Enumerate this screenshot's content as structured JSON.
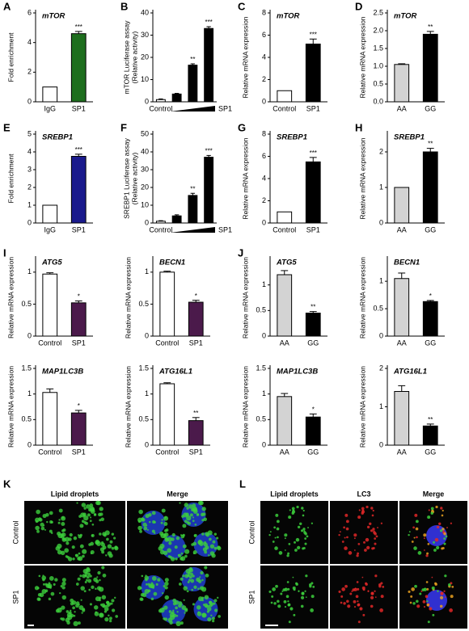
{
  "chart_data": [
    {
      "type": "bar",
      "letter": "A",
      "title": "mTOR",
      "ylabel": [
        "Fold enrichment"
      ],
      "categories": [
        "IgG",
        "SP1"
      ],
      "values": [
        1,
        4.6
      ],
      "errors": [
        null,
        0.15
      ],
      "colors": [
        "#ffffff",
        "#1e6e1e"
      ],
      "markers": [
        null,
        "***"
      ],
      "ylim": [
        0,
        6
      ],
      "yticks": [
        0,
        2,
        4,
        6
      ]
    },
    {
      "type": "bar",
      "letter": "B",
      "ylabel": [
        "mTOR Luciferase assay",
        "(Relative activity)"
      ],
      "categories": [
        "Control",
        null,
        null,
        null
      ],
      "gradient_label": "SP1",
      "values": [
        1,
        3.5,
        16.5,
        33
      ],
      "errors": [
        0.3,
        0.3,
        0.6,
        0.8
      ],
      "colors": [
        "#ffffff",
        "#000000",
        "#000000",
        "#000000"
      ],
      "markers": [
        null,
        null,
        "**",
        "***"
      ],
      "ylim": [
        0,
        40
      ],
      "yticks": [
        0,
        10,
        20,
        30,
        40
      ]
    },
    {
      "type": "bar",
      "letter": "C",
      "title": "mTOR",
      "ylabel": [
        "Relative mRNA expression"
      ],
      "categories": [
        "Control",
        "SP1"
      ],
      "values": [
        1,
        5.2
      ],
      "errors": [
        null,
        0.45
      ],
      "colors": [
        "#ffffff",
        "#000000"
      ],
      "markers": [
        null,
        "***"
      ],
      "ylim": [
        0,
        8
      ],
      "yticks": [
        0,
        2,
        4,
        6,
        8
      ]
    },
    {
      "type": "bar",
      "letter": "D",
      "title": "mTOR",
      "ylabel": [
        "Relative mRNA expression"
      ],
      "categories": [
        "AA",
        "GG"
      ],
      "values": [
        1.05,
        1.9
      ],
      "errors": [
        0.02,
        0.08
      ],
      "colors": [
        "#d3d3d3",
        "#000000"
      ],
      "markers": [
        null,
        "**"
      ],
      "ylim": [
        0,
        2.5
      ],
      "yticks": [
        {
          "value": 0,
          "label": "0.0"
        },
        0.5,
        {
          "value": 1,
          "label": "1.0"
        },
        1.5,
        {
          "value": 2,
          "label": "2.0"
        },
        2.5
      ]
    },
    {
      "type": "bar",
      "letter": "E",
      "title": "SREBP1",
      "ylabel": [
        "Fold enrichment"
      ],
      "categories": [
        "IgG",
        "SP1"
      ],
      "values": [
        1,
        3.75
      ],
      "errors": [
        null,
        0.12
      ],
      "colors": [
        "#ffffff",
        "#1a1a8c"
      ],
      "markers": [
        null,
        "***"
      ],
      "ylim": [
        0,
        5
      ],
      "yticks": [
        0,
        1,
        2,
        3,
        4,
        5
      ]
    },
    {
      "type": "bar",
      "letter": "F",
      "ylabel": [
        "SREBP1 Luciferase assay",
        "(Relative activity)"
      ],
      "categories": [
        "Control",
        null,
        null,
        null
      ],
      "gradient_label": "SP1",
      "values": [
        1,
        4,
        15.5,
        37
      ],
      "errors": [
        0.3,
        0.6,
        1.2,
        1
      ],
      "colors": [
        "#ffffff",
        "#000000",
        "#000000",
        "#000000"
      ],
      "markers": [
        null,
        null,
        "**",
        "***"
      ],
      "ylim": [
        0,
        50
      ],
      "yticks": [
        0,
        10,
        20,
        30,
        40,
        50
      ]
    },
    {
      "type": "bar",
      "letter": "G",
      "title": "SREBP1",
      "ylabel": [
        "Relative mRNA expression"
      ],
      "categories": [
        "Control",
        "SP1"
      ],
      "values": [
        1,
        5.5
      ],
      "errors": [
        null,
        0.4
      ],
      "colors": [
        "#ffffff",
        "#000000"
      ],
      "markers": [
        null,
        "***"
      ],
      "ylim": [
        0,
        8
      ],
      "yticks": [
        0,
        2,
        4,
        6,
        8
      ]
    },
    {
      "type": "bar",
      "letter": "H",
      "title": "SREBP1",
      "ylabel": [
        "Relative mRNA expression"
      ],
      "categories": [
        "AA",
        "GG"
      ],
      "values": [
        1,
        2
      ],
      "errors": [
        null,
        0.1
      ],
      "colors": [
        "#d3d3d3",
        "#000000"
      ],
      "markers": [
        null,
        "**"
      ],
      "ylim": [
        0,
        2.5
      ],
      "yticks": [
        0,
        1,
        2
      ]
    },
    {
      "type": "bar",
      "letter": "I",
      "title": "ATG5",
      "ylabel": [
        "Relative mRNA expression"
      ],
      "categories": [
        "Control",
        "SP1"
      ],
      "values": [
        0.97,
        0.52
      ],
      "errors": [
        0.02,
        0.03
      ],
      "colors": [
        "#ffffff",
        "#4b1a4b"
      ],
      "markers": [
        null,
        "*"
      ],
      "ylim": [
        0,
        1.2
      ],
      "yticks": [
        0,
        0.5,
        1
      ]
    },
    {
      "type": "bar",
      "title": "BECN1",
      "ylabel": [
        "Relative mRNA expression"
      ],
      "categories": [
        "Control",
        "SP1"
      ],
      "values": [
        1,
        0.53
      ],
      "errors": [
        0.015,
        0.03
      ],
      "colors": [
        "#ffffff",
        "#4b1a4b"
      ],
      "markers": [
        null,
        "*"
      ],
      "ylim": [
        0,
        1.2
      ],
      "yticks": [
        0,
        0.5,
        1
      ]
    },
    {
      "type": "bar",
      "letter": "J",
      "title": "ATG5",
      "ylabel": [
        "Relative mRNA expression"
      ],
      "categories": [
        "AA",
        "GG"
      ],
      "values": [
        1.2,
        0.45
      ],
      "errors": [
        0.08,
        0.03
      ],
      "colors": [
        "#d3d3d3",
        "#000000"
      ],
      "markers": [
        null,
        "**"
      ],
      "ylim": [
        0,
        1.5
      ],
      "yticks": [
        0,
        0.5,
        1
      ]
    },
    {
      "type": "bar",
      "title": "BECN1",
      "ylabel": [
        "Relative mRNA expression"
      ],
      "categories": [
        "AA",
        "GG"
      ],
      "values": [
        1.05,
        0.63
      ],
      "errors": [
        0.1,
        0.02
      ],
      "colors": [
        "#d3d3d3",
        "#000000"
      ],
      "markers": [
        null,
        "*"
      ],
      "ylim": [
        0,
        1.4
      ],
      "yticks": [
        0,
        0.5,
        1
      ]
    },
    {
      "type": "bar",
      "title": "MAP1LC3B",
      "ylabel": [
        "Relative mRNA expression"
      ],
      "categories": [
        "Control",
        "SP1"
      ],
      "values": [
        1.03,
        0.63
      ],
      "errors": [
        0.07,
        0.05
      ],
      "colors": [
        "#ffffff",
        "#4b1a4b"
      ],
      "markers": [
        null,
        "*"
      ],
      "ylim": [
        0,
        1.5
      ],
      "yticks": [
        0,
        0.5,
        1,
        1.5
      ]
    },
    {
      "type": "bar",
      "title": "ATG16L1",
      "ylabel": [
        "Relative mRNA expression"
      ],
      "categories": [
        "Control",
        "SP1"
      ],
      "values": [
        1.2,
        0.48
      ],
      "errors": [
        0.02,
        0.06
      ],
      "colors": [
        "#ffffff",
        "#4b1a4b"
      ],
      "markers": [
        null,
        "**"
      ],
      "ylim": [
        0,
        1.5
      ],
      "yticks": [
        0,
        0.5,
        1,
        1.5
      ]
    },
    {
      "type": "bar",
      "title": "MAP1LC3B",
      "ylabel": [
        "Relative mRNA expression"
      ],
      "categories": [
        "AA",
        "GG"
      ],
      "values": [
        0.95,
        0.55
      ],
      "errors": [
        0.06,
        0.06
      ],
      "colors": [
        "#d3d3d3",
        "#000000"
      ],
      "markers": [
        null,
        "*"
      ],
      "ylim": [
        0,
        1.5
      ],
      "yticks": [
        0,
        0.5,
        1,
        1.5
      ]
    },
    {
      "type": "bar",
      "title": "ATG16L1",
      "ylabel": [
        "Relative mRNA expression"
      ],
      "categories": [
        "AA",
        "GG"
      ],
      "values": [
        1.4,
        0.5
      ],
      "errors": [
        0.15,
        0.05
      ],
      "colors": [
        "#d3d3d3",
        "#000000"
      ],
      "markers": [
        null,
        "**"
      ],
      "ylim": [
        0,
        2
      ],
      "yticks": [
        0,
        1,
        2
      ]
    }
  ],
  "images": [
    {
      "letter": "K",
      "columns": [
        "Lipid droplets",
        "Merge"
      ],
      "column_colors": [
        "#22b14c",
        "#000000"
      ],
      "rows": [
        "Control",
        "SP1"
      ]
    },
    {
      "letter": "L",
      "columns": [
        "Lipid droplets",
        "LC3",
        "Merge"
      ],
      "column_colors": [
        "#22b14c",
        "#e02020",
        "#000000"
      ],
      "rows": [
        "Control",
        "SP1"
      ]
    }
  ]
}
